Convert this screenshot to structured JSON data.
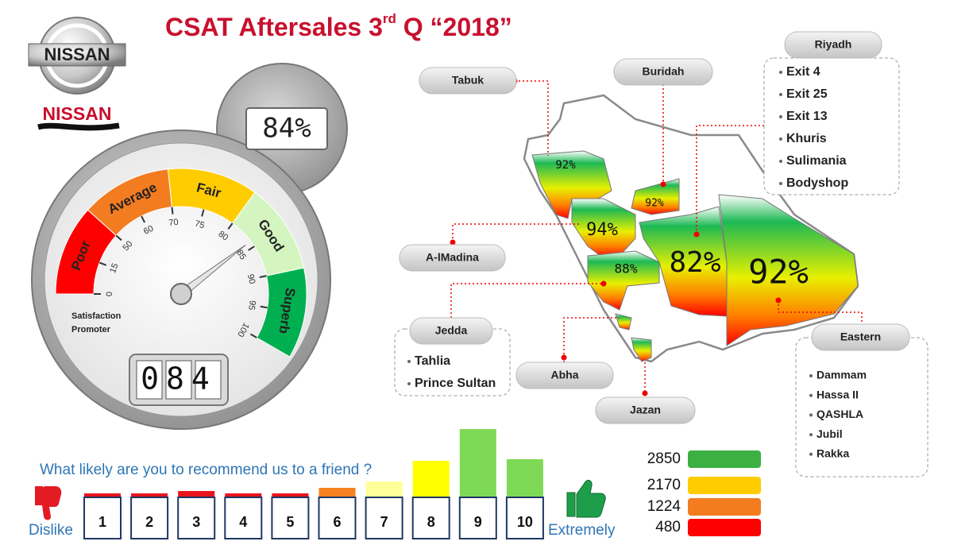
{
  "header": {
    "brand": "NISSAN",
    "dealer": "NISSAN",
    "title": "CSAT Aftersales 3",
    "title_sup": "rd",
    "title_end": " Q “2018”"
  },
  "gauge": {
    "display": "84%",
    "counter": "084",
    "value": 84,
    "bands": [
      {
        "label": "Poor",
        "color": "#ff0000"
      },
      {
        "label": "Average",
        "color": "#f47c20"
      },
      {
        "label": "Fair",
        "color": "#ffcc00"
      },
      {
        "label": "Good",
        "color": "#d4f5c0"
      },
      {
        "label": "Superb",
        "color": "#00b050"
      }
    ],
    "ticks": [
      0,
      15,
      50,
      60,
      70,
      75,
      80,
      85,
      90,
      95,
      100
    ],
    "caption": [
      "Satisfaction",
      "Promoter"
    ]
  },
  "map": {
    "scores": [
      "92%",
      "94%",
      "92%",
      "88%",
      "82%",
      "92%"
    ],
    "callouts": [
      {
        "name": "Tabuk"
      },
      {
        "name": "Buridah"
      },
      {
        "name": "Riyadh",
        "items": [
          "Exit 4",
          "Exit 25",
          "Exit 13",
          "Khuris",
          "Sulimania",
          "Bodyshop"
        ]
      },
      {
        "name": "A-lMadina"
      },
      {
        "name": "Jedda",
        "items": [
          "Tahlia",
          "Prince Sultan"
        ]
      },
      {
        "name": "Abha"
      },
      {
        "name": "Jazan"
      },
      {
        "name": "Eastern",
        "items": [
          "Dammam",
          "Hassa II",
          "QASHLA",
          "Jubil",
          "Rakka"
        ]
      }
    ]
  },
  "legend": [
    {
      "value": 2850,
      "color": "#3cb043"
    },
    {
      "value": 2170,
      "color": "#ffcc00"
    },
    {
      "value": 1224,
      "color": "#f47c20"
    },
    {
      "value": 480,
      "color": "#ff0000"
    }
  ],
  "chart_data": {
    "type": "bar",
    "title": "What likely are you to recommend us to a friend ?",
    "left_label": "Dislike",
    "right_label": "Extremely",
    "categories": [
      1,
      2,
      3,
      4,
      5,
      6,
      7,
      8,
      9,
      10
    ],
    "values": [
      7,
      7,
      10,
      7,
      7,
      14,
      22,
      48,
      88,
      50
    ],
    "colors": [
      "#e8141e",
      "#e8141e",
      "#e8141e",
      "#e8141e",
      "#e8141e",
      "#f58220",
      "#ffff99",
      "#ffff00",
      "#7ed957",
      "#7ed957"
    ]
  }
}
